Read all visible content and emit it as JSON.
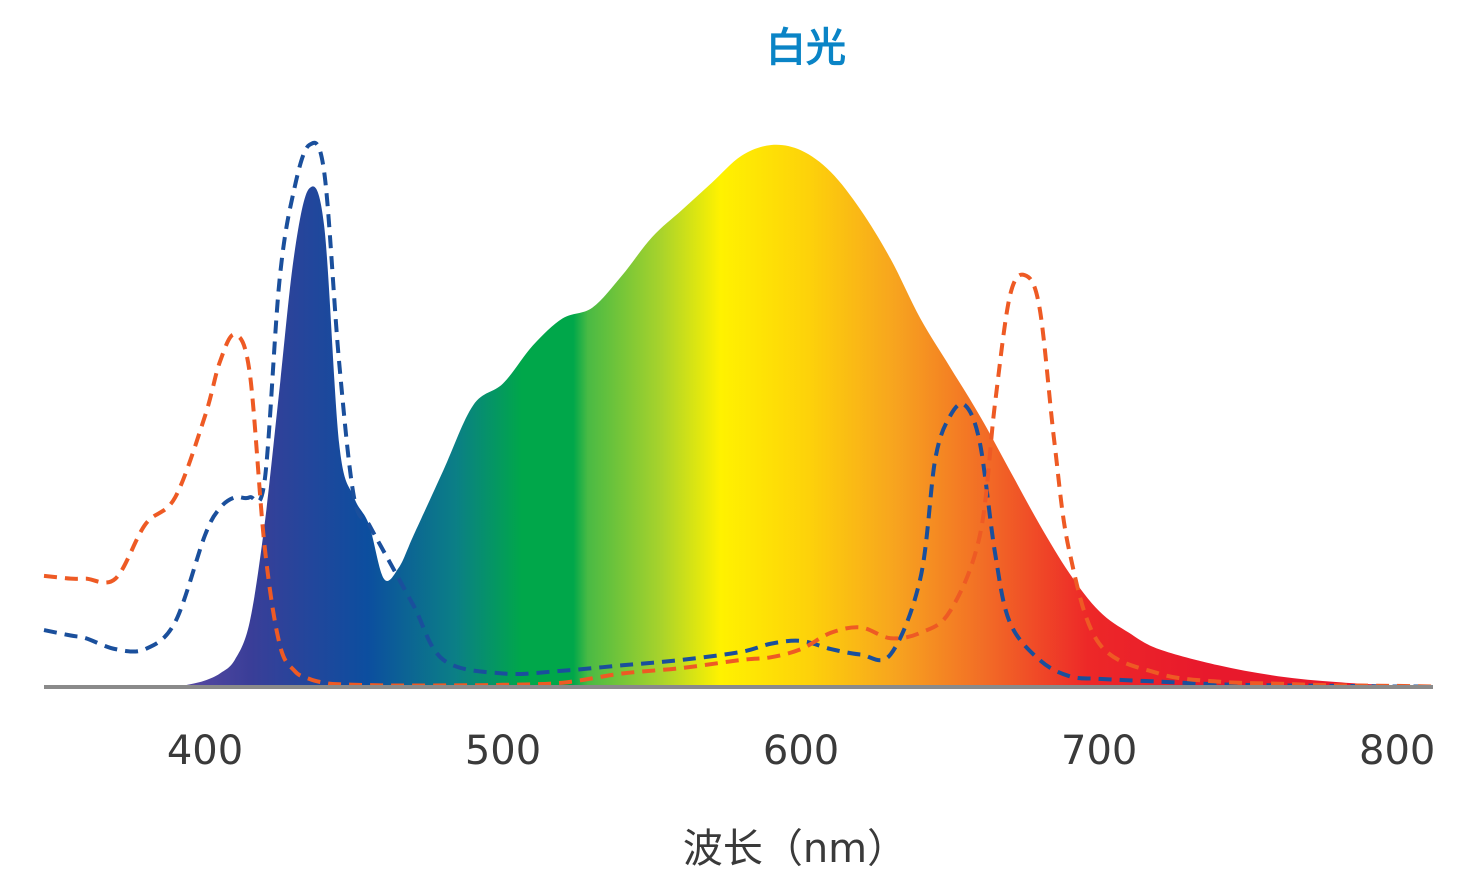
{
  "chart_data": {
    "type": "area",
    "title": "白光",
    "xlabel": "波长（nm）",
    "ylabel": "",
    "xlim": [
      346,
      812
    ],
    "ylim": [
      0,
      1
    ],
    "x_ticks": [
      "400",
      "500",
      "600",
      "700",
      "800"
    ],
    "grid": false,
    "colors": {
      "title": "#0a84c6",
      "axis": "#8a8a8a",
      "dashed_blue": "#1a4f9c",
      "dashed_orange": "#ee5a24"
    },
    "series": [
      {
        "style": "filled-spectrum",
        "x": [
          390,
          395,
          400,
          405,
          410,
          415,
          420,
          425,
          430,
          435,
          440,
          445,
          450,
          455,
          460,
          465,
          470,
          480,
          490,
          500,
          510,
          520,
          530,
          540,
          550,
          560,
          570,
          580,
          590,
          600,
          610,
          620,
          630,
          640,
          650,
          660,
          670,
          680,
          690,
          700,
          710,
          720,
          740,
          760,
          780,
          800,
          810
        ],
        "y": [
          0.0,
          0.005,
          0.012,
          0.025,
          0.05,
          0.12,
          0.3,
          0.55,
          0.8,
          0.92,
          0.85,
          0.45,
          0.35,
          0.3,
          0.2,
          0.22,
          0.28,
          0.4,
          0.52,
          0.56,
          0.63,
          0.68,
          0.7,
          0.76,
          0.83,
          0.88,
          0.93,
          0.98,
          1.0,
          0.99,
          0.95,
          0.88,
          0.79,
          0.68,
          0.59,
          0.5,
          0.4,
          0.3,
          0.21,
          0.14,
          0.1,
          0.07,
          0.04,
          0.02,
          0.009,
          0.003,
          0.002
        ]
      },
      {
        "style": "dashed",
        "color": "blue",
        "x": [
          346,
          355,
          360,
          370,
          380,
          390,
          400,
          405,
          410,
          415,
          420,
          425,
          430,
          435,
          440,
          445,
          450,
          455,
          460,
          470,
          480,
          500,
          520,
          540,
          560,
          580,
          590,
          600,
          610,
          620,
          630,
          640,
          645,
          650,
          655,
          660,
          665,
          670,
          680,
          690,
          700,
          720,
          740,
          760,
          780,
          800,
          812
        ],
        "y": [
          0.105,
          0.095,
          0.09,
          0.07,
          0.07,
          0.12,
          0.28,
          0.33,
          0.35,
          0.35,
          0.38,
          0.75,
          0.92,
          1.0,
          0.95,
          0.6,
          0.35,
          0.3,
          0.25,
          0.15,
          0.05,
          0.025,
          0.03,
          0.04,
          0.05,
          0.065,
          0.08,
          0.085,
          0.07,
          0.06,
          0.06,
          0.2,
          0.42,
          0.5,
          0.52,
          0.45,
          0.25,
          0.12,
          0.05,
          0.02,
          0.015,
          0.01,
          0.005,
          0.003,
          0.002,
          0.001,
          0.001
        ]
      },
      {
        "style": "dashed",
        "color": "orange",
        "x": [
          346,
          355,
          360,
          370,
          380,
          390,
          400,
          405,
          410,
          415,
          420,
          425,
          430,
          435,
          440,
          445,
          460,
          480,
          500,
          520,
          540,
          560,
          580,
          590,
          600,
          610,
          620,
          630,
          640,
          650,
          660,
          665,
          670,
          675,
          680,
          685,
          690,
          700,
          720,
          740,
          760,
          780,
          800,
          812
        ],
        "y": [
          0.205,
          0.2,
          0.2,
          0.2,
          0.3,
          0.35,
          0.5,
          0.6,
          0.65,
          0.58,
          0.26,
          0.08,
          0.03,
          0.015,
          0.008,
          0.005,
          0.003,
          0.003,
          0.004,
          0.008,
          0.025,
          0.035,
          0.05,
          0.055,
          0.07,
          0.1,
          0.11,
          0.09,
          0.1,
          0.14,
          0.28,
          0.52,
          0.72,
          0.76,
          0.7,
          0.45,
          0.25,
          0.08,
          0.025,
          0.01,
          0.006,
          0.003,
          0.002,
          0.001
        ]
      }
    ]
  }
}
